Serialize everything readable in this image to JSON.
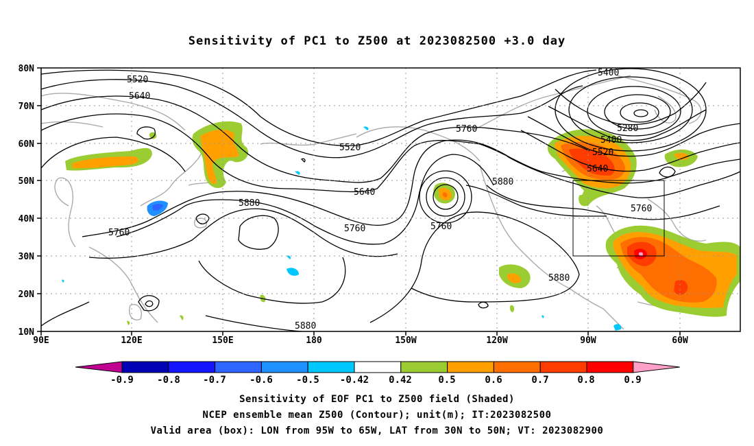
{
  "title": "Sensitivity of PC1 to Z500 at 2023082500 +3.0 day",
  "lat_labels": [
    "80N",
    "70N",
    "60N",
    "50N",
    "40N",
    "30N",
    "20N",
    "10N"
  ],
  "lon_labels": [
    "90E",
    "120E",
    "150E",
    "180",
    "150W",
    "120W",
    "90W",
    "60W"
  ],
  "contour_labels": [
    {
      "text": "5520"
    },
    {
      "text": "5640"
    },
    {
      "text": "5400"
    },
    {
      "text": "5280"
    },
    {
      "text": "5400"
    },
    {
      "text": "5520"
    },
    {
      "text": "5640"
    },
    {
      "text": "5760"
    },
    {
      "text": "5520"
    },
    {
      "text": "5640"
    },
    {
      "text": "5760"
    },
    {
      "text": "5760"
    },
    {
      "text": "5880"
    },
    {
      "text": "5760"
    },
    {
      "text": "5880"
    },
    {
      "text": "5880"
    },
    {
      "text": "5760"
    },
    {
      "text": "5880"
    }
  ],
  "colorbar": {
    "labels": [
      "-0.9",
      "-0.8",
      "-0.7",
      "-0.6",
      "-0.5",
      "-0.42",
      "0.42",
      "0.5",
      "0.6",
      "0.7",
      "0.8",
      "0.9"
    ],
    "colors": [
      "#c00090",
      "#0000b4",
      "#1414ff",
      "#2e64ff",
      "#1e90ff",
      "#00c8ff",
      "#ffffff",
      "#9bcd32",
      "#ffa000",
      "#ff6e00",
      "#ff3c00",
      "#ff0000",
      "#ffa0c8"
    ]
  },
  "footer": {
    "line1": "Sensitivity of EOF PC1 to Z500 field (Shaded)",
    "line2": "NCEP ensemble mean Z500 (Contour); unit(m); IT:2023082500",
    "line3": "Valid area (box): LON from 95W to 65W, LAT from 30N to 50N; VT: 2023082900"
  }
}
